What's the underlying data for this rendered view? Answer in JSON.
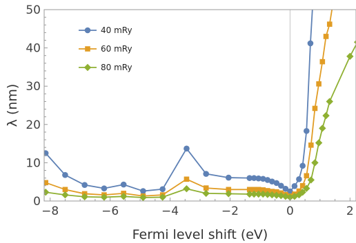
{
  "chart_data": {
    "type": "line",
    "xlabel": "Fermi level shift (eV)",
    "ylabel": "λ (nm)",
    "xlim": [
      -8.2,
      2.2
    ],
    "ylim": [
      0,
      50
    ],
    "xticks": [
      -8,
      -6,
      -4,
      -2,
      0,
      2
    ],
    "yticks": [
      0,
      10,
      20,
      30,
      40,
      50
    ],
    "xtick_labels": [
      "−8",
      "−6",
      "−4",
      "−2",
      "0",
      "2"
    ],
    "ytick_labels": [
      "0",
      "10",
      "20",
      "30",
      "40",
      "50"
    ],
    "grid": false,
    "reference_line_x": 0,
    "legend_position": "top-left",
    "series": [
      {
        "name": "40 mRy",
        "color": "#5e81b5",
        "marker": "circle",
        "points": [
          [
            -8.15,
            12.5
          ],
          [
            -7.5,
            6.8
          ],
          [
            -6.85,
            4.2
          ],
          [
            -6.2,
            3.3
          ],
          [
            -5.55,
            4.3
          ],
          [
            -4.9,
            2.6
          ],
          [
            -4.25,
            3.1
          ],
          [
            -3.45,
            13.7
          ],
          [
            -2.8,
            7.1
          ],
          [
            -2.05,
            6.1
          ],
          [
            -1.35,
            6.0
          ],
          [
            -1.2,
            6.0
          ],
          [
            -1.05,
            5.9
          ],
          [
            -0.9,
            5.8
          ],
          [
            -0.75,
            5.5
          ],
          [
            -0.6,
            5.1
          ],
          [
            -0.45,
            4.7
          ],
          [
            -0.3,
            4.0
          ],
          [
            -0.15,
            3.2
          ],
          [
            0.0,
            2.5
          ],
          [
            0.15,
            3.9
          ],
          [
            0.3,
            5.7
          ],
          [
            0.42,
            9.2
          ],
          [
            0.55,
            18.3
          ],
          [
            0.68,
            41.2
          ],
          [
            0.82,
            60.0
          ]
        ]
      },
      {
        "name": "60 mRy",
        "color": "#e19c24",
        "marker": "square",
        "points": [
          [
            -8.15,
            4.8
          ],
          [
            -7.5,
            3.0
          ],
          [
            -6.85,
            1.9
          ],
          [
            -6.2,
            1.6
          ],
          [
            -5.55,
            2.0
          ],
          [
            -4.9,
            1.3
          ],
          [
            -4.25,
            1.6
          ],
          [
            -3.45,
            5.7
          ],
          [
            -2.8,
            3.4
          ],
          [
            -2.05,
            3.0
          ],
          [
            -1.35,
            3.0
          ],
          [
            -1.2,
            3.0
          ],
          [
            -1.05,
            3.0
          ],
          [
            -0.9,
            2.9
          ],
          [
            -0.75,
            2.7
          ],
          [
            -0.6,
            2.5
          ],
          [
            -0.45,
            2.4
          ],
          [
            -0.3,
            2.1
          ],
          [
            -0.15,
            1.7
          ],
          [
            0.0,
            1.3
          ],
          [
            0.15,
            1.8
          ],
          [
            0.3,
            2.6
          ],
          [
            0.42,
            4.0
          ],
          [
            0.55,
            6.6
          ],
          [
            0.7,
            14.6
          ],
          [
            0.83,
            24.2
          ],
          [
            0.96,
            30.6
          ],
          [
            1.08,
            36.4
          ],
          [
            1.2,
            43.0
          ],
          [
            1.32,
            46.2
          ],
          [
            1.5,
            55.0
          ]
        ]
      },
      {
        "name": "80 mRy",
        "color": "#8fb032",
        "marker": "diamond",
        "points": [
          [
            -8.15,
            2.3
          ],
          [
            -7.5,
            1.6
          ],
          [
            -6.85,
            1.1
          ],
          [
            -6.2,
            1.0
          ],
          [
            -5.55,
            1.2
          ],
          [
            -4.9,
            0.9
          ],
          [
            -4.25,
            1.0
          ],
          [
            -3.45,
            3.2
          ],
          [
            -2.8,
            2.0
          ],
          [
            -2.05,
            1.9
          ],
          [
            -1.35,
            1.8
          ],
          [
            -1.2,
            1.8
          ],
          [
            -1.05,
            1.8
          ],
          [
            -0.9,
            1.8
          ],
          [
            -0.75,
            1.7
          ],
          [
            -0.6,
            1.6
          ],
          [
            -0.45,
            1.5
          ],
          [
            -0.3,
            1.4
          ],
          [
            -0.15,
            1.2
          ],
          [
            0.0,
            1.0
          ],
          [
            0.15,
            1.2
          ],
          [
            0.3,
            1.6
          ],
          [
            0.42,
            2.3
          ],
          [
            0.55,
            3.3
          ],
          [
            0.7,
            5.5
          ],
          [
            0.83,
            10.0
          ],
          [
            0.96,
            15.2
          ],
          [
            1.08,
            19.0
          ],
          [
            1.2,
            22.3
          ],
          [
            1.32,
            26.0
          ],
          [
            2.0,
            37.8
          ],
          [
            2.25,
            41.5
          ]
        ]
      }
    ]
  }
}
